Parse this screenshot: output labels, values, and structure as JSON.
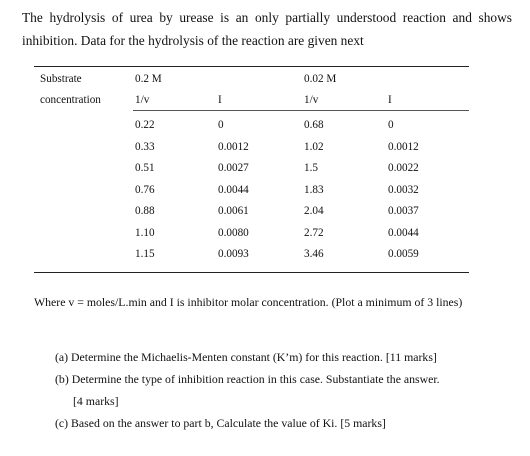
{
  "intro": "The hydrolysis of urea by urease is an only partially understood reaction and shows inhibition. Data for the hydrolysis of the reaction are given next",
  "table": {
    "row_label_1": "Substrate",
    "row_label_2": "concentration",
    "conc_a": "0.2 M",
    "conc_b": "0.02 M",
    "col_inv_v": "1/v",
    "col_i": "I",
    "rows": [
      {
        "a_inv_v": "0.22",
        "a_i": "0",
        "b_inv_v": "0.68",
        "b_i": "0"
      },
      {
        "a_inv_v": "0.33",
        "a_i": "0.0012",
        "b_inv_v": "1.02",
        "b_i": "0.0012"
      },
      {
        "a_inv_v": "0.51",
        "a_i": "0.0027",
        "b_inv_v": "1.5",
        "b_i": "0.0022"
      },
      {
        "a_inv_v": "0.76",
        "a_i": "0.0044",
        "b_inv_v": "1.83",
        "b_i": "0.0032"
      },
      {
        "a_inv_v": "0.88",
        "a_i": "0.0061",
        "b_inv_v": "2.04",
        "b_i": "0.0037"
      },
      {
        "a_inv_v": "1.10",
        "a_i": "0.0080",
        "b_inv_v": "2.72",
        "b_i": "0.0044"
      },
      {
        "a_inv_v": "1.15",
        "a_i": "0.0093",
        "b_inv_v": "3.46",
        "b_i": "0.0059"
      }
    ]
  },
  "where_note": "Where v = moles/L.min and I is inhibitor molar concentration. (Plot a minimum of 3 lines)",
  "questions": {
    "a": "(a) Determine the Michaelis-Menten constant (K’m) for this reaction. [11 marks]",
    "b_line1": "(b) Determine the type of inhibition reaction in this case. Substantiate the answer.",
    "b_line2": "[4 marks]",
    "c": "(c) Based on the answer to part b, Calculate the value of Ki. [5 marks]"
  }
}
